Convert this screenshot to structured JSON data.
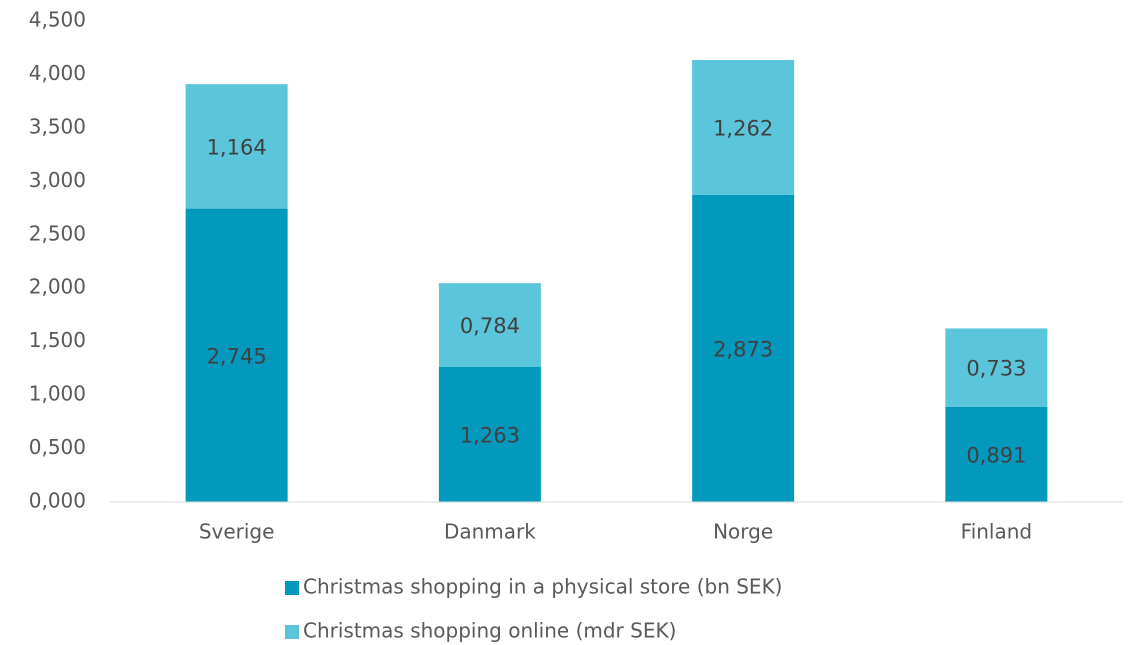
{
  "chart_data": {
    "type": "stacked_bar",
    "categories": [
      "Sverige",
      "Danmark",
      "Norge",
      "Finland"
    ],
    "series": [
      {
        "name": "Christmas shopping in a physical store (bn SEK)",
        "color": "#0399bc",
        "values": [
          2.745,
          1.263,
          2.873,
          0.891
        ],
        "value_labels": [
          "2,745",
          "1,263",
          "2,873",
          "0,891"
        ]
      },
      {
        "name": "Christmas shopping online (mdr SEK)",
        "color": "#5bc5db",
        "values": [
          1.164,
          0.784,
          1.262,
          0.733
        ],
        "value_labels": [
          "1,164",
          "0,784",
          "1,262",
          "0,733"
        ]
      }
    ],
    "ylim": [
      0,
      4.5
    ],
    "yticks": [
      {
        "value": 0,
        "label": "0,000"
      },
      {
        "value": 0.5,
        "label": "0,500"
      },
      {
        "value": 1,
        "label": "1,000"
      },
      {
        "value": 1.5,
        "label": "1,500"
      },
      {
        "value": 2,
        "label": "2,000"
      },
      {
        "value": 2.5,
        "label": "2,500"
      },
      {
        "value": 3,
        "label": "3,000"
      },
      {
        "value": 3.5,
        "label": "3,500"
      },
      {
        "value": 4,
        "label": "4,000"
      },
      {
        "value": 4.5,
        "label": "4,500"
      }
    ],
    "grid": false,
    "legend": "bottom"
  }
}
